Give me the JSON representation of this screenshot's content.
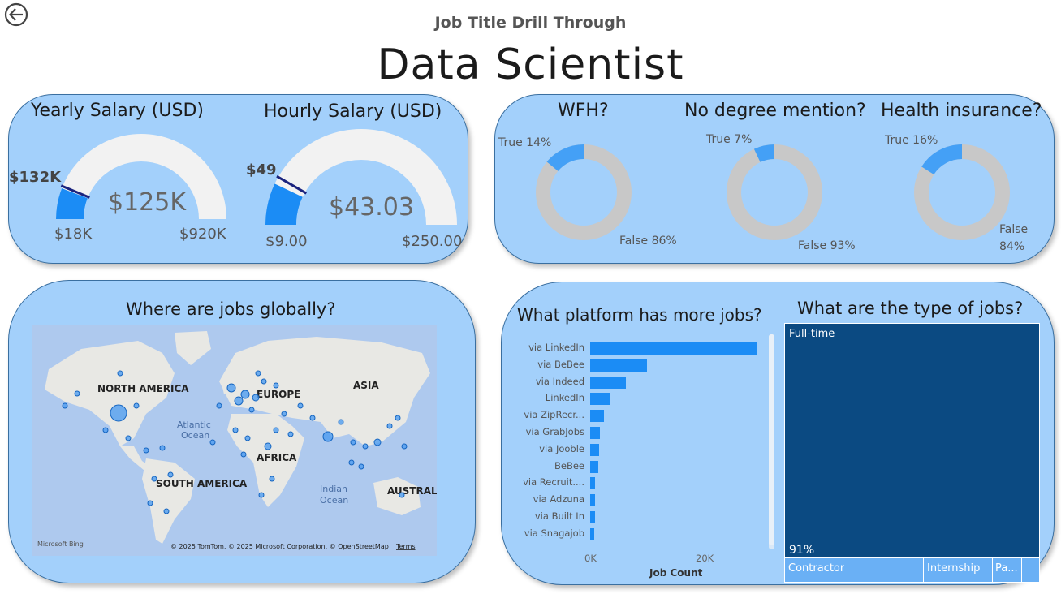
{
  "header": {
    "subtitle": "Job Title Drill Through",
    "title": "Data Scientist"
  },
  "salary_card": {
    "yearly": {
      "title": "Yearly Salary (USD)",
      "value": "$125K",
      "min": "$18K",
      "max": "$920K",
      "target": "$132K",
      "fill_fraction": 0.118,
      "target_fraction": 0.126
    },
    "hourly": {
      "title": "Hourly Salary (USD)",
      "value": "$43.03",
      "min": "$9.00",
      "max": "$250.00",
      "target": "$49",
      "fill_fraction": 0.141,
      "target_fraction": 0.166
    }
  },
  "benefits_card": {
    "wfh": {
      "title": "WFH?",
      "true_label": "True 14%",
      "false_label": "False 86%",
      "true_fraction": 0.14
    },
    "no_degree": {
      "title": "No degree mention?",
      "true_label": "True 7%",
      "false_label": "False 93%",
      "true_fraction": 0.07
    },
    "health": {
      "title": "Health insurance?",
      "true_label": "True 16%",
      "false_label_1": "False",
      "false_label_2": "84%",
      "true_fraction": 0.16
    }
  },
  "map_card": {
    "title": "Where are jobs globally?",
    "labels": {
      "north_america": "NORTH AMERICA",
      "europe": "EUROPE",
      "asia": "ASIA",
      "africa": "AFRICA",
      "south_america": "SOUTH AMERICA",
      "australia": "AUSTRALIA",
      "atlantic_1": "Atlantic",
      "atlantic_2": "Ocean",
      "indian_1": "Indian",
      "indian_2": "Ocean"
    },
    "attribution": "© 2025 TomTom, © 2025 Microsoft Corporation, © OpenStreetMap",
    "terms": "Terms",
    "bing": "Microsoft Bing"
  },
  "platform_card": {
    "title": "What platform has more jobs?",
    "xlabel": "Job Count",
    "ticks": [
      "0K",
      "20K"
    ]
  },
  "chart_data": {
    "type": "bar",
    "orientation": "horizontal",
    "title": "What platform has more jobs?",
    "xlabel": "Job Count",
    "categories": [
      "via LinkedIn",
      "via BeBee",
      "via Indeed",
      "LinkedIn",
      "via ZipRecr...",
      "via GrabJobs",
      "via Jooble",
      "BeBee",
      "via Recruit....",
      "via Adzuna",
      "via Built In",
      "via Snagajob"
    ],
    "values": [
      29500,
      10100,
      6300,
      3400,
      2400,
      1700,
      1600,
      1500,
      900,
      800,
      800,
      700
    ],
    "xlim": [
      0,
      30000
    ]
  },
  "jobtype_card": {
    "title": "What are the type of jobs?",
    "fulltime_label": "Full-time",
    "fulltime_pct": "91%",
    "contractor_label": "Contractor",
    "internship_label": "Internship",
    "parttime_label": "Pa...",
    "color_main": "#0b4a82",
    "color_secondary": "#6ab0f5"
  },
  "colors": {
    "card_bg": "#a3d0fb",
    "accent_blue": "#1b8cf5",
    "gauge_bg": "#f2f2f2",
    "donut_false": "#c8c8c8",
    "donut_true": "#44a0f6"
  }
}
